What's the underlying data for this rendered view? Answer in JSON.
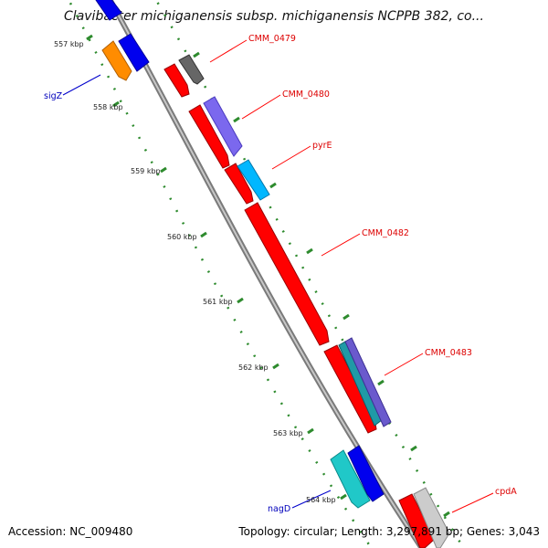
{
  "title": "Clavibacter michiganensis subsp. michiganensis NCPPB 382, co...",
  "footer": {
    "accession": "Accession: NC_009480",
    "topology": "Topology: circular; Length: 3,297,891 bp; Genes: 3,043"
  },
  "ticks": [
    "557 kbp",
    "558 kbp",
    "559 kbp",
    "560 kbp",
    "561 kbp",
    "562 kbp",
    "563 kbp",
    "564 kbp"
  ],
  "genes": {
    "cmm0479": "CMM_0479",
    "cmm0480": "CMM_0480",
    "pyrE": "pyrE",
    "cmm0482": "CMM_0482",
    "cmm0483": "CMM_0483",
    "cpdA": "cpdA",
    "sigZ": "sigZ",
    "nagD": "nagD"
  },
  "colors": {
    "forward_gene": "#ff0000",
    "reverse_gene": "#0000ee",
    "forward_label": "#dd0000",
    "reverse_label": "#0000bb",
    "backbone": "#888888",
    "tick_marks": "#2e8b2e"
  }
}
